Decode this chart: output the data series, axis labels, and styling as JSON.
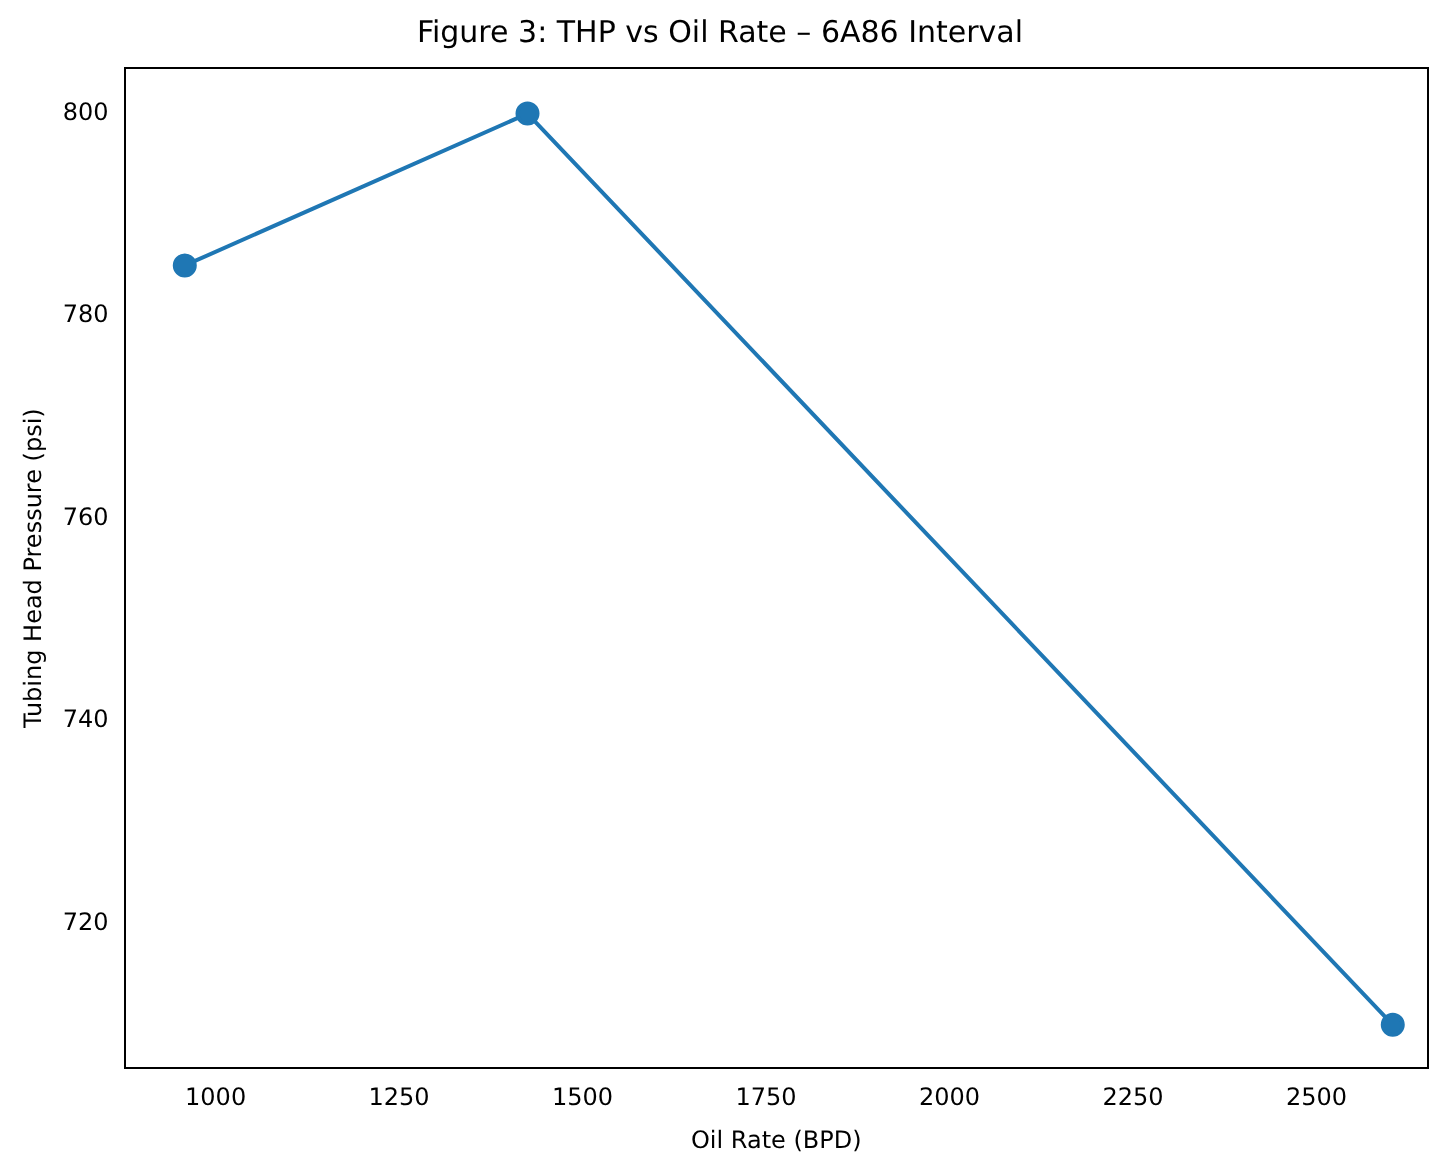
{
  "chart_data": {
    "type": "line",
    "title": "Figure 3: THP vs Oil Rate – 6A86 Interval",
    "xlabel": "Oil Rate (BPD)",
    "ylabel": "Tubing Head Pressure (psi)",
    "x": [
      958,
      1425,
      2604
    ],
    "series": [
      {
        "color": "#1f77b4",
        "values": [
          785,
          800,
          710
        ]
      }
    ],
    "xlim": [
      876,
      2652
    ],
    "xticks": [
      1000,
      1250,
      1500,
      1750,
      2000,
      2250,
      2500
    ],
    "ylim": [
      705.7,
      804.5
    ],
    "yticks": [
      720,
      740,
      760,
      780,
      800
    ],
    "marker": "circle",
    "line_style": "solid",
    "grid": false,
    "legend": false
  }
}
